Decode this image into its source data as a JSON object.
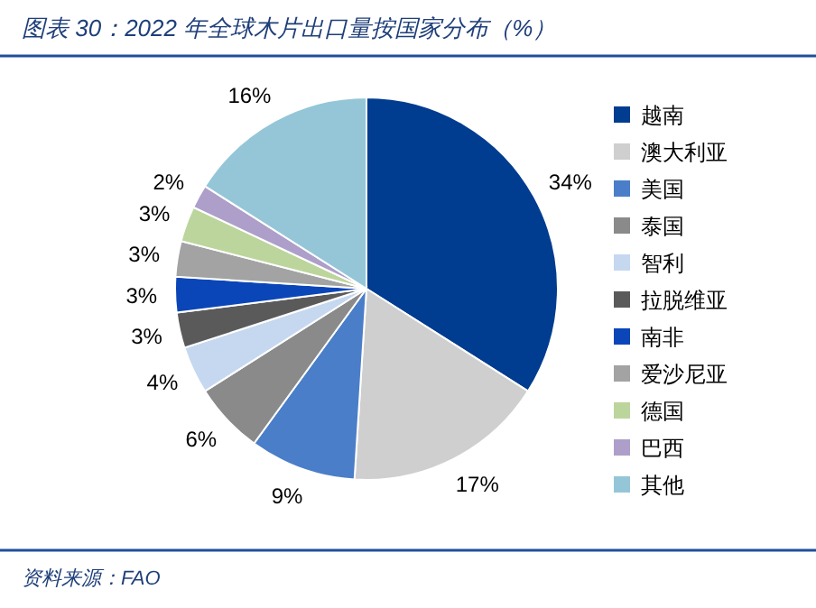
{
  "chart_data": {
    "type": "pie",
    "title": "图表 30：2022 年全球木片出口量按国家分布（%）",
    "categories": [
      "越南",
      "澳大利亚",
      "美国",
      "泰国",
      "智利",
      "拉脱维亚",
      "南非",
      "爱沙尼亚",
      "德国",
      "巴西",
      "其他"
    ],
    "values": [
      34,
      17,
      9,
      6,
      4,
      3,
      3,
      3,
      3,
      2,
      16
    ],
    "colors": [
      "#003c8f",
      "#cfcfcf",
      "#4a7ec8",
      "#8a8a8a",
      "#c6d8f0",
      "#5a5a5a",
      "#0b46b8",
      "#a3a3a3",
      "#bcd59c",
      "#ad9fc9",
      "#94c6d8"
    ],
    "value_labels": [
      "34%",
      "17%",
      "9%",
      "6%",
      "4%",
      "3%",
      "3%",
      "3%",
      "3%",
      "2%",
      "16%"
    ],
    "legend": "right",
    "annotations": [
      "资料来源：FAO"
    ]
  }
}
